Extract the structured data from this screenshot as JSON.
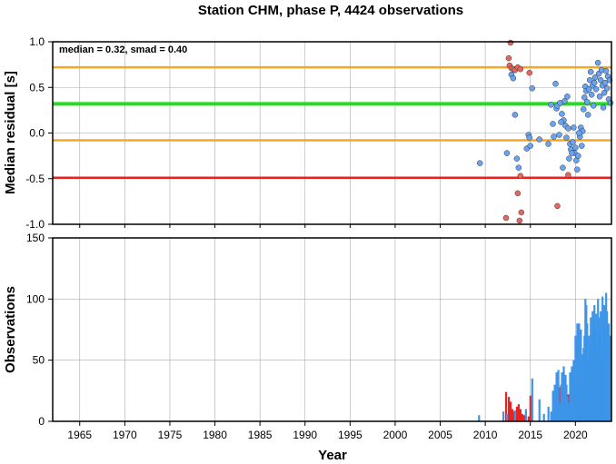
{
  "title": "Station CHM, phase P, 4424 observations",
  "chart_data": [
    {
      "type": "scatter",
      "ylabel": "Median residual [s]",
      "xlim": [
        1962,
        2024
      ],
      "ylim": [
        -1.0,
        1.0
      ],
      "yticks": [
        "1.0",
        "0.5",
        "0.0",
        "-0.5",
        "-1.0"
      ],
      "ytick_values": [
        1.0,
        0.5,
        0.0,
        -0.5,
        -1.0
      ],
      "grid": true,
      "annotation": "median = 0.32, smad = 0.40",
      "reference_lines": [
        {
          "y": 0.72,
          "color": "#f5a623"
        },
        {
          "y": 0.32,
          "color": "#22dd22"
        },
        {
          "y": -0.08,
          "color": "#f5a623"
        },
        {
          "y": -0.49,
          "color": "#e8221e"
        }
      ],
      "series": [
        {
          "color": "#e8665e",
          "points": [
            [
              2012.8,
              0.99
            ],
            [
              2012.6,
              0.82
            ],
            [
              2012.7,
              0.74
            ],
            [
              2012.9,
              0.71
            ],
            [
              2013.1,
              0.7
            ],
            [
              2013.3,
              0.69
            ],
            [
              2013.6,
              0.72
            ],
            [
              2013.9,
              0.7
            ],
            [
              2014.9,
              0.66
            ],
            [
              2012.3,
              -0.93
            ],
            [
              2013.6,
              -0.66
            ],
            [
              2013.9,
              -0.47
            ],
            [
              2014.0,
              -0.87
            ],
            [
              2013.8,
              -0.96
            ],
            [
              2018.0,
              -0.8
            ],
            [
              2019.2,
              -0.46
            ]
          ]
        },
        {
          "color": "#6aa3f0",
          "points": [
            [
              2009.4,
              -0.33
            ],
            [
              2012.4,
              -0.22
            ],
            [
              2012.9,
              0.64
            ],
            [
              2013.1,
              0.6
            ],
            [
              2013.3,
              0.2
            ],
            [
              2013.5,
              -0.28
            ],
            [
              2013.7,
              -0.38
            ],
            [
              2014.6,
              -0.17
            ],
            [
              2014.8,
              -0.02
            ],
            [
              2014.9,
              -0.05
            ],
            [
              2015.2,
              0.49
            ],
            [
              2015.0,
              -0.14
            ],
            [
              2016.0,
              -0.07
            ],
            [
              2017.0,
              -0.12
            ],
            [
              2017.3,
              0.31
            ],
            [
              2017.6,
              -0.04
            ],
            [
              2017.8,
              0.54
            ],
            [
              2017.9,
              0.27
            ],
            [
              2018.0,
              0.3
            ],
            [
              2018.3,
              0.33
            ],
            [
              2018.5,
              0.21
            ],
            [
              2018.7,
              0.14
            ],
            [
              2018.9,
              0.08
            ],
            [
              2019.0,
              -0.05
            ],
            [
              2019.2,
              0.05
            ],
            [
              2019.4,
              -0.12
            ],
            [
              2019.5,
              -0.18
            ],
            [
              2019.7,
              -0.1
            ],
            [
              2019.8,
              0.06
            ],
            [
              2019.9,
              -0.22
            ],
            [
              2020.0,
              -0.16
            ],
            [
              2020.1,
              -0.3
            ],
            [
              2020.2,
              -0.4
            ],
            [
              2020.3,
              -0.25
            ],
            [
              2020.5,
              -0.04
            ],
            [
              2020.6,
              0.06
            ],
            [
              2020.8,
              0.02
            ],
            [
              2020.9,
              0.26
            ],
            [
              2021.0,
              0.39
            ],
            [
              2021.1,
              0.51
            ],
            [
              2021.2,
              0.46
            ],
            [
              2021.3,
              0.34
            ],
            [
              2021.5,
              0.48
            ],
            [
              2021.6,
              0.58
            ],
            [
              2021.7,
              0.67
            ],
            [
              2021.8,
              0.42
            ],
            [
              2021.9,
              0.52
            ],
            [
              2022.0,
              0.3
            ],
            [
              2022.1,
              0.55
            ],
            [
              2022.2,
              0.61
            ],
            [
              2022.3,
              0.48
            ],
            [
              2022.5,
              0.77
            ],
            [
              2022.6,
              0.65
            ],
            [
              2022.7,
              0.4
            ],
            [
              2022.8,
              0.58
            ],
            [
              2022.9,
              0.69
            ],
            [
              2023.0,
              0.52
            ],
            [
              2023.1,
              0.28
            ],
            [
              2023.2,
              0.44
            ],
            [
              2023.3,
              0.55
            ],
            [
              2023.4,
              0.68
            ],
            [
              2023.5,
              0.49
            ],
            [
              2023.6,
              0.62
            ],
            [
              2023.7,
              0.37
            ],
            [
              2023.8,
              0.58
            ],
            [
              2023.9,
              0.33
            ],
            [
              2018.2,
              -0.02
            ],
            [
              2018.4,
              0.12
            ],
            [
              2018.6,
              -0.38
            ],
            [
              2019.3,
              -0.28
            ],
            [
              2019.6,
              -0.22
            ],
            [
              2020.4,
              0.0
            ],
            [
              2020.7,
              -0.14
            ],
            [
              2021.4,
              0.2
            ],
            [
              2017.5,
              0.1
            ],
            [
              2018.8,
              0.35
            ],
            [
              2019.1,
              0.4
            ]
          ]
        }
      ]
    },
    {
      "type": "bar",
      "xlabel": "Year",
      "ylabel": "Observations",
      "xlim": [
        1962,
        2024
      ],
      "ylim": [
        0,
        150
      ],
      "xticks": [
        "1965",
        "1970",
        "1975",
        "1980",
        "1985",
        "1990",
        "1995",
        "2000",
        "2005",
        "2010",
        "2015",
        "2020"
      ],
      "xtick_values": [
        1965,
        1970,
        1975,
        1980,
        1985,
        1990,
        1995,
        2000,
        2005,
        2010,
        2015,
        2020
      ],
      "yticks": [
        "0",
        "50",
        "100",
        "150"
      ],
      "ytick_values": [
        0,
        50,
        100,
        150
      ],
      "grid": true,
      "series": [
        {
          "color": "#e8221e",
          "x": [
            2012.3,
            2012.6,
            2012.8,
            2013.0,
            2013.2,
            2013.5,
            2013.7,
            2013.9,
            2014.1,
            2014.3,
            2014.8,
            2015.0,
            2018.2,
            2018.6,
            2019.2,
            2019.5
          ],
          "values": [
            24,
            20,
            16,
            10,
            8,
            12,
            14,
            10,
            6,
            5,
            4,
            21,
            28,
            18,
            22,
            20
          ]
        },
        {
          "color": "#3d94e8",
          "x": [
            2009.3,
            2012.0,
            2012.4,
            2013.3,
            2014.5,
            2015.2,
            2016.0,
            2016.5,
            2017.0,
            2017.3,
            2017.5,
            2017.7,
            2017.9,
            2018.0,
            2018.1,
            2018.3,
            2018.4,
            2018.5,
            2018.7,
            2018.8,
            2018.9,
            2019.0,
            2019.1,
            2019.3,
            2019.4,
            2019.6,
            2019.7,
            2019.8,
            2019.9,
            2020.0,
            2020.1,
            2020.2,
            2020.3,
            2020.4,
            2020.5,
            2020.6,
            2020.7,
            2020.8,
            2020.9,
            2021.0,
            2021.1,
            2021.2,
            2021.3,
            2021.4,
            2021.5,
            2021.6,
            2021.7,
            2021.8,
            2021.9,
            2022.0,
            2022.1,
            2022.2,
            2022.3,
            2022.4,
            2022.5,
            2022.6,
            2022.7,
            2022.8,
            2022.9,
            2023.0,
            2023.1,
            2023.2,
            2023.3,
            2023.4,
            2023.5,
            2023.6,
            2023.7,
            2023.8,
            2023.9
          ],
          "values": [
            5,
            8,
            6,
            9,
            10,
            35,
            18,
            6,
            12,
            8,
            25,
            30,
            40,
            10,
            42,
            15,
            30,
            40,
            45,
            25,
            38,
            30,
            20,
            15,
            40,
            45,
            38,
            50,
            40,
            70,
            45,
            80,
            60,
            80,
            55,
            75,
            30,
            55,
            60,
            70,
            100,
            95,
            80,
            50,
            70,
            60,
            85,
            70,
            90,
            80,
            95,
            75,
            88,
            60,
            100,
            85,
            72,
            90,
            55,
            102,
            80,
            95,
            70,
            105,
            90,
            65,
            80,
            60,
            70
          ]
        }
      ]
    }
  ]
}
